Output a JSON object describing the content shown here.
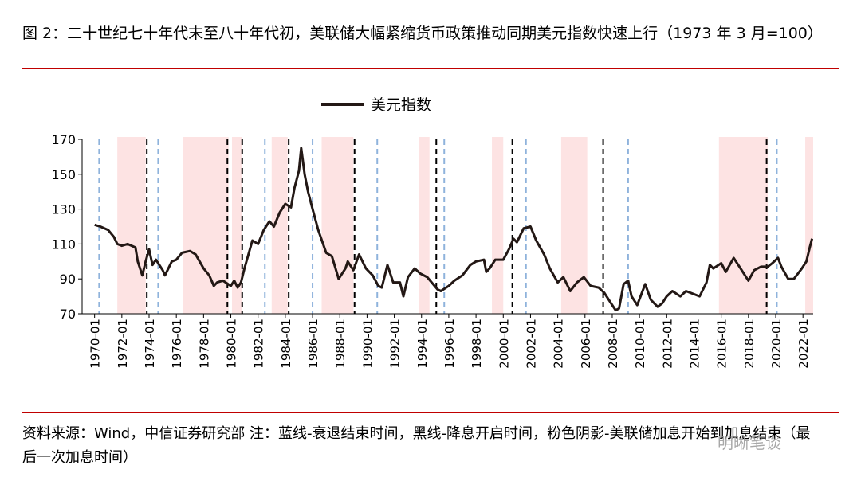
{
  "title": "图 2：二十世纪七十年代末至八十年代初，美联储大幅紧缩货币政策推动同期美元指数快速上行（1973 年 3 月=100）",
  "footer": "资料来源：Wind，中信证券研究部 注：蓝线-衰退结束时间，黑线-降息开启时间，粉色阴影-美联储加息开始到加息结束（最后一次加息时间）",
  "watermark": "明晰笔谈",
  "chart_data": {
    "type": "line",
    "legend": "top",
    "xlim": [
      "1969-02",
      "2022-10"
    ],
    "ylim": [
      70,
      170
    ],
    "yticks": [
      70,
      90,
      110,
      130,
      150,
      170
    ],
    "xticks": [
      "1970-01",
      "1972-01",
      "1974-01",
      "1976-01",
      "1978-01",
      "1980-01",
      "1982-01",
      "1984-01",
      "1986-01",
      "1988-01",
      "1990-01",
      "1992-01",
      "1994-01",
      "1996-01",
      "1998-01",
      "2000-01",
      "2002-01",
      "2004-01",
      "2006-01",
      "2008-01",
      "2010-01",
      "2012-01",
      "2014-01",
      "2016-01",
      "2018-01",
      "2020-01",
      "2022-01"
    ],
    "hike_periods": {
      "color": "#fde3e3",
      "ranges": [
        [
          "1971-09",
          "1973-10"
        ],
        [
          "1976-07",
          "1979-11"
        ],
        [
          "1980-02",
          "1980-11"
        ],
        [
          "1983-01",
          "1984-03"
        ],
        [
          "1986-09",
          "1989-01"
        ],
        [
          "1993-11",
          "1994-08"
        ],
        [
          "1999-03",
          "2000-01"
        ],
        [
          "2004-04",
          "2006-03"
        ],
        [
          "2015-11",
          "2019-06"
        ],
        [
          "2022-03",
          "2022-10"
        ]
      ]
    },
    "recession_end_lines": {
      "color": "#8fb3dc",
      "x": [
        "1970-05",
        "1974-09",
        "1982-07",
        "1986-01",
        "1990-10",
        "1995-09",
        "2001-09",
        "2009-03",
        "2020-02"
      ]
    },
    "rate_cut_start_lines": {
      "color": "#000000",
      "x": [
        "1973-11",
        "1979-10",
        "1980-11",
        "1984-04",
        "1989-02",
        "1995-02",
        "2000-09",
        "2007-05",
        "2019-05"
      ]
    },
    "series": [
      {
        "name": "美元指数",
        "color": "#231815",
        "x": [
          "1970-01",
          "1970-06",
          "1971-01",
          "1971-06",
          "1971-09",
          "1972-01",
          "1972-06",
          "1973-01",
          "1973-03",
          "1973-07",
          "1973-10",
          "1974-01",
          "1974-04",
          "1974-07",
          "1975-01",
          "1975-03",
          "1975-09",
          "1976-01",
          "1976-06",
          "1977-01",
          "1977-06",
          "1978-01",
          "1978-06",
          "1978-10",
          "1979-01",
          "1979-06",
          "1980-01",
          "1980-04",
          "1980-07",
          "1980-10",
          "1981-01",
          "1981-08",
          "1982-01",
          "1982-06",
          "1982-11",
          "1983-03",
          "1983-08",
          "1984-01",
          "1984-06",
          "1984-09",
          "1985-01",
          "1985-03",
          "1985-06",
          "1985-09",
          "1986-01",
          "1986-06",
          "1987-01",
          "1987-06",
          "1987-12",
          "1988-06",
          "1988-08",
          "1989-01",
          "1989-06",
          "1989-12",
          "1990-06",
          "1990-11",
          "1991-02",
          "1991-07",
          "1991-12",
          "1992-06",
          "1992-09",
          "1993-01",
          "1993-07",
          "1993-12",
          "1994-06",
          "1995-03",
          "1995-06",
          "1996-01",
          "1996-06",
          "1997-01",
          "1997-08",
          "1998-01",
          "1998-08",
          "1998-10",
          "1999-01",
          "1999-06",
          "2000-01",
          "2000-06",
          "2000-10",
          "2001-01",
          "2001-07",
          "2002-01",
          "2002-06",
          "2003-01",
          "2003-06",
          "2004-01",
          "2004-06",
          "2004-12",
          "2005-06",
          "2005-12",
          "2006-06",
          "2007-01",
          "2007-06",
          "2007-12",
          "2008-04",
          "2008-07",
          "2008-11",
          "2009-03",
          "2009-06",
          "2009-11",
          "2010-06",
          "2010-11",
          "2011-05",
          "2011-09",
          "2012-01",
          "2012-06",
          "2013-01",
          "2013-06",
          "2014-06",
          "2014-12",
          "2015-03",
          "2015-06",
          "2016-01",
          "2016-05",
          "2016-12",
          "2017-06",
          "2018-01",
          "2018-06",
          "2018-12",
          "2019-06",
          "2019-10",
          "2020-03",
          "2020-06",
          "2020-12",
          "2021-05",
          "2021-12",
          "2022-04",
          "2022-07",
          "2022-09"
        ],
        "values": [
          121,
          120,
          118,
          114,
          110,
          109,
          110,
          108,
          100,
          92,
          100,
          107,
          98,
          101,
          95,
          92,
          100,
          101,
          105,
          106,
          104,
          96,
          92,
          86,
          88,
          89,
          86,
          89,
          85,
          88,
          96,
          112,
          110,
          118,
          123,
          120,
          128,
          133,
          131,
          142,
          152,
          165,
          150,
          140,
          130,
          118,
          105,
          103,
          90,
          96,
          100,
          95,
          104,
          96,
          92,
          86,
          85,
          98,
          88,
          88,
          80,
          91,
          96,
          93,
          91,
          84,
          83,
          86,
          89,
          92,
          98,
          100,
          101,
          94,
          96,
          101,
          101,
          107,
          113,
          111,
          119,
          120,
          112,
          104,
          96,
          88,
          91,
          83,
          88,
          91,
          86,
          85,
          82,
          76,
          72,
          73,
          87,
          89,
          80,
          75,
          87,
          78,
          74,
          76,
          80,
          83,
          80,
          83,
          80,
          88,
          98,
          96,
          99,
          94,
          102,
          96,
          89,
          95,
          97,
          97,
          99,
          102,
          97,
          90,
          90,
          96,
          100,
          108,
          113
        ]
      }
    ]
  }
}
